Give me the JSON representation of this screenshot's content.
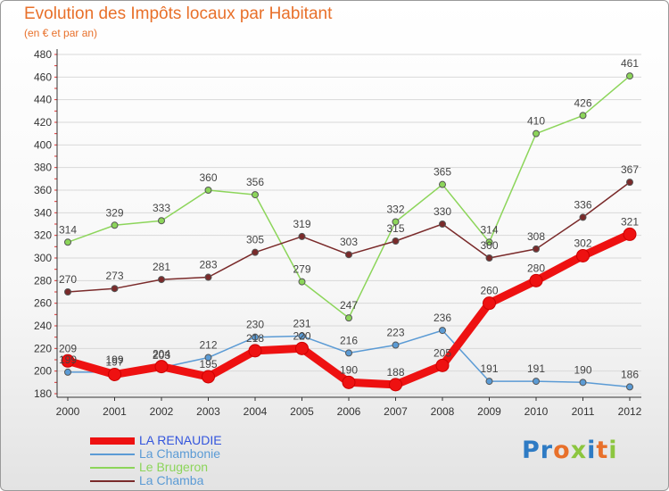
{
  "page": {
    "title": "Evolution des Impôts locaux par Habitant",
    "subtitle": "(en € et par an)"
  },
  "colors": {
    "title": "#e8702a",
    "axis": "#333333",
    "gridline": "#d9d9d9",
    "tick_marks": "#e03030"
  },
  "logo": {
    "text": "Proxiti",
    "letter_colors": [
      "#2e7bc4",
      "#2e7bc4",
      "#e8702a",
      "#8cc63f",
      "#2e7bc4",
      "#e8702a",
      "#8cc63f"
    ]
  },
  "chart_data": {
    "type": "line",
    "title": "Evolution des Impôts locaux par Habitant",
    "subtitle": "(en € et par an)",
    "xlabel": "",
    "ylabel": "",
    "categories": [
      "2000",
      "2001",
      "2002",
      "2003",
      "2004",
      "2005",
      "2006",
      "2007",
      "2008",
      "2009",
      "2010",
      "2011",
      "2012"
    ],
    "ylim": [
      180,
      480
    ],
    "yticks": [
      180,
      200,
      220,
      240,
      260,
      280,
      300,
      320,
      340,
      360,
      380,
      400,
      420,
      440,
      460,
      480
    ],
    "grid": true,
    "legend_position": "bottom-left",
    "series": [
      {
        "name": "LA RENAUDIE",
        "color": "#ee1111",
        "legend_color": "#3355dd",
        "emphasis": true,
        "values": [
          209,
          197,
          204,
          195,
          218,
          220,
          190,
          188,
          205,
          260,
          280,
          302,
          321
        ],
        "labels": [
          "209",
          "197",
          "204",
          "195",
          "218",
          "220",
          "190",
          "188",
          "205",
          "260",
          "280",
          "302",
          "321"
        ]
      },
      {
        "name": "La Chambonie",
        "color": "#5b9bd5",
        "legend_color": "#5b9bd5",
        "emphasis": false,
        "values": [
          199,
          199,
          203,
          212,
          230,
          231,
          216,
          223,
          236,
          191,
          191,
          190,
          186
        ],
        "labels": [
          "199",
          "199",
          "203",
          "212",
          "230",
          "231",
          "216",
          "223",
          "236",
          "191",
          "191",
          "190",
          "186"
        ]
      },
      {
        "name": "Le Brugeron",
        "color": "#8cd55a",
        "legend_color": "#8cd55a",
        "emphasis": false,
        "values": [
          314,
          329,
          333,
          360,
          356,
          279,
          247,
          332,
          365,
          314,
          410,
          426,
          461
        ],
        "labels": [
          "314",
          "329",
          "333",
          "360",
          "356",
          "279",
          "247",
          "332",
          "365",
          "314",
          "410",
          "426",
          "461"
        ]
      },
      {
        "name": "La Chamba",
        "color": "#7a2a2a",
        "legend_color": "#5b9bd5",
        "emphasis": false,
        "values": [
          270,
          273,
          281,
          283,
          305,
          319,
          303,
          315,
          330,
          300,
          308,
          336,
          367
        ],
        "labels": [
          "270",
          "273",
          "281",
          "283",
          "305",
          "319",
          "303",
          "315",
          "330",
          "300",
          "308",
          "336",
          "367"
        ]
      }
    ]
  }
}
